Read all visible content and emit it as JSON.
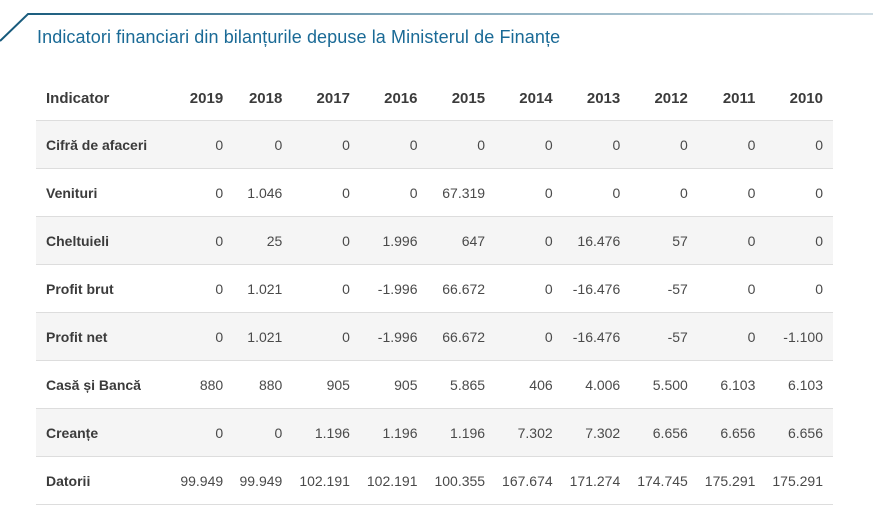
{
  "panel": {
    "title": "Indicatori financiari din bilanțurile depuse la Ministerul de Finanțe"
  },
  "table": {
    "columns": [
      "Indicator",
      "2019",
      "2018",
      "2017",
      "2016",
      "2015",
      "2014",
      "2013",
      "2012",
      "2011",
      "2010"
    ],
    "rows": [
      {
        "label": "Cifră de afaceri",
        "values": [
          "0",
          "0",
          "0",
          "0",
          "0",
          "0",
          "0",
          "0",
          "0",
          "0"
        ]
      },
      {
        "label": "Venituri",
        "values": [
          "0",
          "1.046",
          "0",
          "0",
          "67.319",
          "0",
          "0",
          "0",
          "0",
          "0"
        ]
      },
      {
        "label": "Cheltuieli",
        "values": [
          "0",
          "25",
          "0",
          "1.996",
          "647",
          "0",
          "16.476",
          "57",
          "0",
          "0"
        ]
      },
      {
        "label": "Profit brut",
        "values": [
          "0",
          "1.021",
          "0",
          "-1.996",
          "66.672",
          "0",
          "-16.476",
          "-57",
          "0",
          "0"
        ]
      },
      {
        "label": "Profit net",
        "values": [
          "0",
          "1.021",
          "0",
          "-1.996",
          "66.672",
          "0",
          "-16.476",
          "-57",
          "0",
          "-1.100"
        ]
      },
      {
        "label": "Casă și Bancă",
        "values": [
          "880",
          "880",
          "905",
          "905",
          "5.865",
          "406",
          "4.006",
          "5.500",
          "6.103",
          "6.103"
        ]
      },
      {
        "label": "Creanțe",
        "values": [
          "0",
          "0",
          "1.196",
          "1.196",
          "1.196",
          "7.302",
          "7.302",
          "6.656",
          "6.656",
          "6.656"
        ]
      },
      {
        "label": "Datorii",
        "values": [
          "99.949",
          "99.949",
          "102.191",
          "102.191",
          "100.355",
          "167.674",
          "171.274",
          "174.745",
          "175.291",
          "175.291"
        ]
      }
    ]
  },
  "colors": {
    "title_text": "#1a6a96",
    "tab_line_dark": "#14587a",
    "tab_line_light": "#cfdce3",
    "row_stripe": "#f5f5f5",
    "row_border": "#dddddd",
    "header_text": "#3b3b3b",
    "cell_text": "#4a4a4a"
  }
}
